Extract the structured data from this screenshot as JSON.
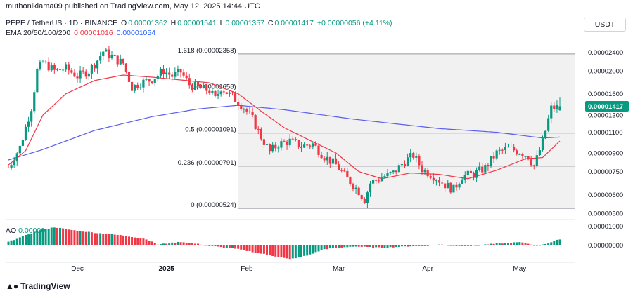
{
  "header": {
    "published": "muthonikiama09 published on TradingView.com, May 12, 2025 14:44 UTC",
    "symbol_line": "PEPE / TetherUS · 1D · BINANCE",
    "ohlc": {
      "o_label": "O",
      "o": "0.00001362",
      "h_label": "H",
      "h": "0.00001541",
      "l_label": "L",
      "l": "0.00001357",
      "c_label": "C",
      "c": "0.00001417",
      "change": "+0.00000056 (+4.11%)"
    },
    "ema_label": "EMA 20/50/100/200",
    "ema_values": [
      "0.00001016",
      "0.00001054"
    ],
    "ao_label": "AO",
    "ao_value": "0.00000"
  },
  "currency_button": "USDT",
  "brand": "TradingView",
  "colors": {
    "up": "#089981",
    "down": "#f23645",
    "ema_short": "#f23645",
    "ema_long": "#5b5ef0",
    "fib_line": "#b2b5be",
    "fib_zone": "#f1f1f2",
    "last_price_bg": "#089981"
  },
  "chart_data": [
    {
      "type": "candlestick",
      "title": "PEPE / TetherUS · 1D · BINANCE",
      "x_tick_labels": [
        "Dec",
        "2025",
        "Feb",
        "Mar",
        "Apr",
        "May"
      ],
      "y_tick_labels": [
        "0.00002400",
        "0.00002000",
        "0.00001600",
        "0.00001300",
        "0.00001100",
        "0.00000900",
        "0.00000750",
        "0.00000600",
        "0.00000500"
      ],
      "y_scale": "log",
      "ylim": [
        4.8e-06,
        2.61e-05
      ],
      "last_price": "0.00001417",
      "fib_levels": [
        {
          "label": "1.618 (0.00002358)",
          "value": 2.358e-05
        },
        {
          "label": "1 (0.00001658)",
          "value": 1.658e-05
        },
        {
          "label": "0.5 (0.00001091)",
          "value": 1.091e-05
        },
        {
          "label": "0.236 (0.00000791)",
          "value": 7.91e-06
        },
        {
          "label": "0 (0.00000524)",
          "value": 5.24e-06
        }
      ],
      "close_path": [
        [
          0,
          7.8e-06
        ],
        [
          4,
          9.5e-06
        ],
        [
          8,
          1.4e-05
        ],
        [
          10,
          2e-05
        ],
        [
          12,
          2.18e-05
        ],
        [
          16,
          2e-05
        ],
        [
          20,
          2.05e-05
        ],
        [
          24,
          1.9e-05
        ],
        [
          28,
          2e-05
        ],
        [
          31,
          2.22e-05
        ],
        [
          33,
          2.42e-05
        ],
        [
          37,
          2.25e-05
        ],
        [
          40,
          2.15e-05
        ],
        [
          43,
          1.7e-05
        ],
        [
          46,
          1.78e-05
        ],
        [
          50,
          1.84e-05
        ],
        [
          54,
          2e-05
        ],
        [
          57,
          1.9e-05
        ],
        [
          60,
          1.98e-05
        ],
        [
          63,
          1.75e-05
        ],
        [
          66,
          1.7e-05
        ],
        [
          70,
          1.65e-05
        ],
        [
          72,
          1.52e-05
        ],
        [
          74,
          1.7e-05
        ],
        [
          78,
          1.55e-05
        ],
        [
          82,
          1.4e-05
        ],
        [
          85,
          1.25e-05
        ],
        [
          88,
          1.05e-05
        ],
        [
          91,
          9.1e-06
        ],
        [
          94,
          9.8e-06
        ],
        [
          98,
          1.01e-05
        ],
        [
          102,
          9.6e-06
        ],
        [
          106,
          9.8e-06
        ],
        [
          110,
          8.7e-06
        ],
        [
          114,
          8e-06
        ],
        [
          118,
          7e-06
        ],
        [
          122,
          6.2e-06
        ],
        [
          124,
          5.7e-06
        ],
        [
          126,
          6.7e-06
        ],
        [
          130,
          7.1e-06
        ],
        [
          134,
          7.4e-06
        ],
        [
          138,
          8.3e-06
        ],
        [
          141,
          8.8e-06
        ],
        [
          144,
          7.7e-06
        ],
        [
          148,
          7.2e-06
        ],
        [
          152,
          6.6e-06
        ],
        [
          155,
          6.3e-06
        ],
        [
          158,
          7.2e-06
        ],
        [
          162,
          7.3e-06
        ],
        [
          166,
          7.8e-06
        ],
        [
          170,
          9e-06
        ],
        [
          174,
          9.4e-06
        ],
        [
          178,
          9.1e-06
        ],
        [
          181,
          8.7e-06
        ],
        [
          183,
          7.9e-06
        ],
        [
          186,
          1e-05
        ],
        [
          189,
          1.39e-05
        ],
        [
          192,
          1.41e-05
        ]
      ],
      "ema_short": [
        [
          0,
          8e-06
        ],
        [
          6,
          9.2e-06
        ],
        [
          12,
          1.3e-05
        ],
        [
          20,
          1.6e-05
        ],
        [
          30,
          1.82e-05
        ],
        [
          40,
          1.92e-05
        ],
        [
          50,
          1.88e-05
        ],
        [
          60,
          1.83e-05
        ],
        [
          70,
          1.78e-05
        ],
        [
          80,
          1.6e-05
        ],
        [
          88,
          1.35e-05
        ],
        [
          96,
          1.15e-05
        ],
        [
          104,
          1.03e-05
        ],
        [
          114,
          9e-06
        ],
        [
          122,
          7.5e-06
        ],
        [
          130,
          7e-06
        ],
        [
          140,
          7.4e-06
        ],
        [
          150,
          7.3e-06
        ],
        [
          160,
          7e-06
        ],
        [
          170,
          7.6e-06
        ],
        [
          180,
          8.5e-06
        ],
        [
          186,
          8.6e-06
        ],
        [
          192,
          1.01e-05
        ]
      ],
      "ema_long": [
        [
          0,
          8.4e-06
        ],
        [
          12,
          9.3e-06
        ],
        [
          30,
          1.12e-05
        ],
        [
          50,
          1.28e-05
        ],
        [
          66,
          1.38e-05
        ],
        [
          80,
          1.43e-05
        ],
        [
          96,
          1.37e-05
        ],
        [
          120,
          1.25e-05
        ],
        [
          150,
          1.14e-05
        ],
        [
          170,
          1.1e-05
        ],
        [
          186,
          1.04e-05
        ],
        [
          192,
          1.05e-05
        ]
      ],
      "ylabel": "",
      "xlabel": ""
    },
    {
      "type": "bar",
      "title": "AO",
      "y_tick_labels": [
        "0.00001000",
        "0.00000000"
      ],
      "series_profile": [
        [
          0,
          0.2
        ],
        [
          10,
          0.8
        ],
        [
          16,
          1.0
        ],
        [
          22,
          0.85
        ],
        [
          30,
          0.7
        ],
        [
          40,
          0.55
        ],
        [
          48,
          0.35
        ],
        [
          52,
          0.05
        ],
        [
          60,
          0.2
        ],
        [
          66,
          0.08
        ],
        [
          72,
          -0.05
        ],
        [
          80,
          -0.2
        ],
        [
          90,
          -0.5
        ],
        [
          98,
          -0.75
        ],
        [
          104,
          -0.55
        ],
        [
          110,
          -0.2
        ],
        [
          120,
          -0.05
        ],
        [
          130,
          -0.12
        ],
        [
          140,
          -0.04
        ],
        [
          150,
          0.05
        ],
        [
          160,
          -0.02
        ],
        [
          170,
          0.1
        ],
        [
          178,
          0.18
        ],
        [
          184,
          0.0
        ],
        [
          188,
          0.12
        ],
        [
          192,
          0.35
        ]
      ]
    }
  ]
}
